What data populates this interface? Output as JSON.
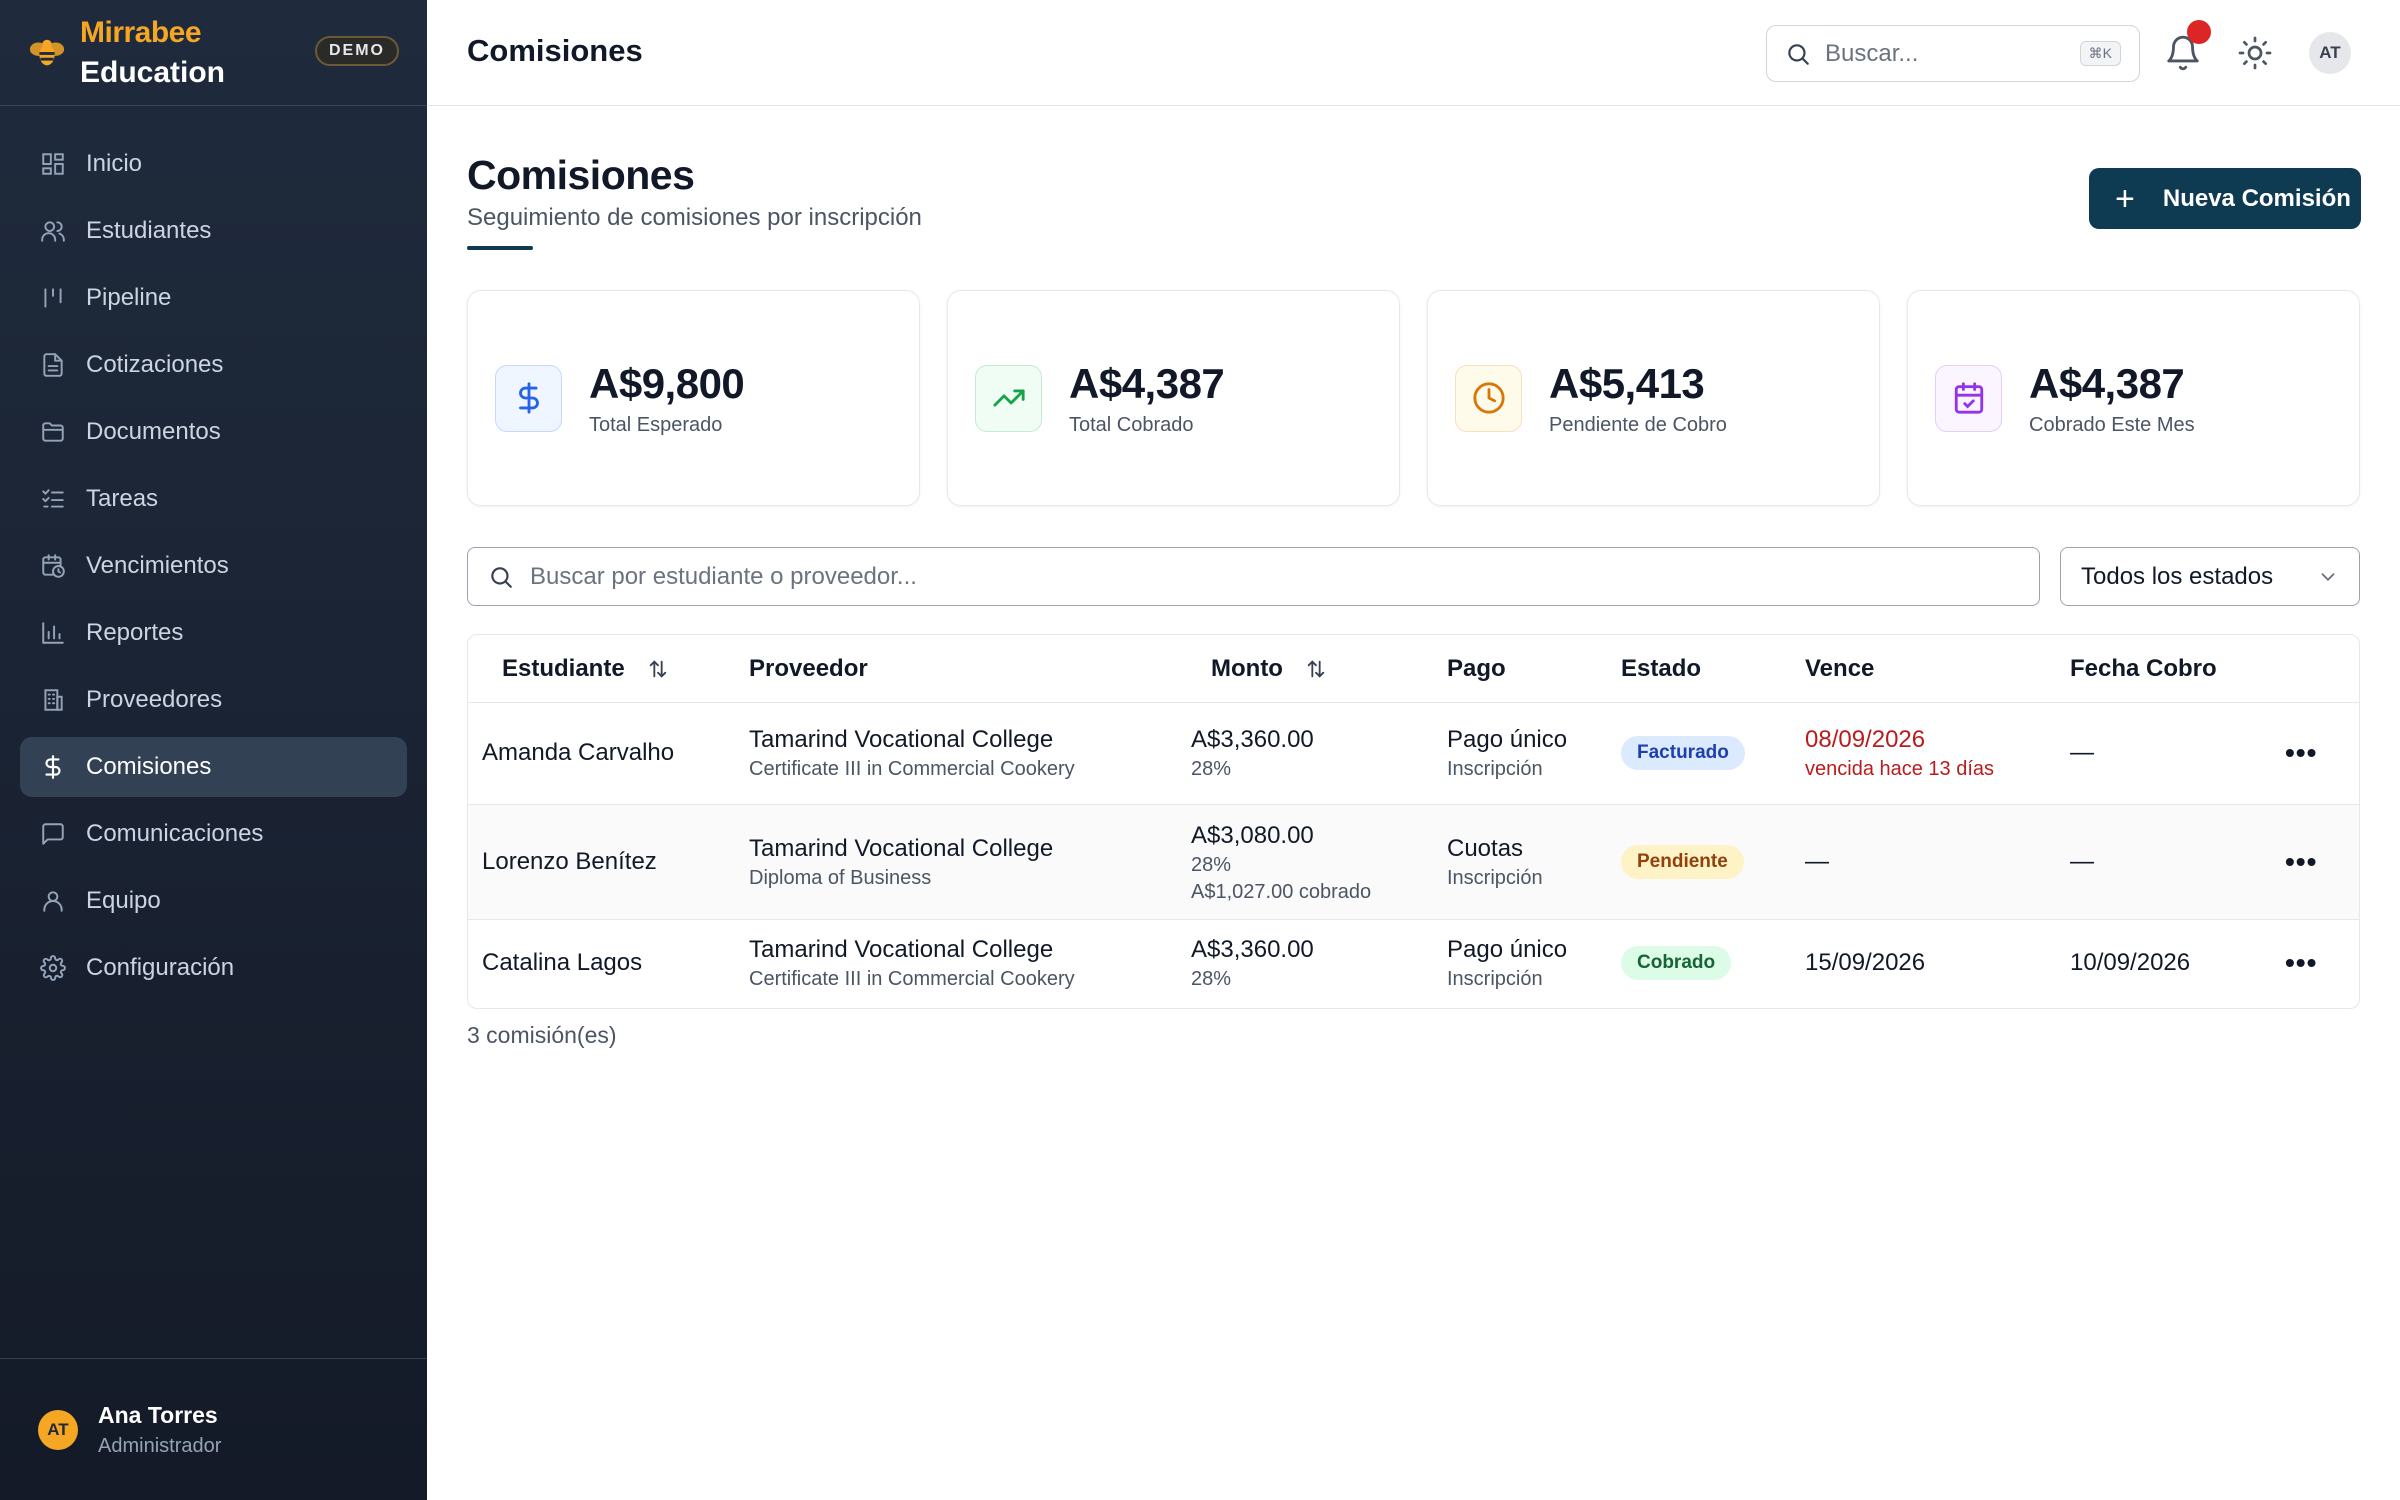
{
  "brand": {
    "name": "Mirrabee",
    "sub": "Education",
    "badge": "DEMO"
  },
  "nav": [
    {
      "label": "Inicio",
      "icon": "grid-icon"
    },
    {
      "label": "Estudiantes",
      "icon": "users-icon"
    },
    {
      "label": "Pipeline",
      "icon": "pipeline-icon"
    },
    {
      "label": "Cotizaciones",
      "icon": "file-text-icon"
    },
    {
      "label": "Documentos",
      "icon": "folder-icon"
    },
    {
      "label": "Tareas",
      "icon": "checklist-icon"
    },
    {
      "label": "Vencimientos",
      "icon": "calendar-clock-icon"
    },
    {
      "label": "Reportes",
      "icon": "bar-chart-icon"
    },
    {
      "label": "Proveedores",
      "icon": "building-icon"
    },
    {
      "label": "Comisiones",
      "icon": "dollar-icon",
      "active": true
    },
    {
      "label": "Comunicaciones",
      "icon": "message-icon"
    },
    {
      "label": "Equipo",
      "icon": "user-icon"
    },
    {
      "label": "Configuración",
      "icon": "gear-icon"
    }
  ],
  "user": {
    "initials": "AT",
    "name": "Ana Torres",
    "role": "Administrador"
  },
  "topbar": {
    "title": "Comisiones",
    "search_placeholder": "Buscar...",
    "shortcut": "⌘K",
    "avatar": "AT"
  },
  "page": {
    "title": "Comisiones",
    "subtitle": "Seguimiento de comisiones por inscripción",
    "new_button": "Nueva Comisión"
  },
  "stats": [
    {
      "value": "A$9,800",
      "label": "Total Esperado",
      "icon": "dollar-icon",
      "color": "#2563eb",
      "bg": "#eff6ff"
    },
    {
      "value": "A$4,387",
      "label": "Total Cobrado",
      "icon": "trending-up-icon",
      "color": "#16a34a",
      "bg": "#f0fdf4"
    },
    {
      "value": "A$5,413",
      "label": "Pendiente de Cobro",
      "icon": "clock-icon",
      "color": "#d97706",
      "bg": "#fffbeb"
    },
    {
      "value": "A$4,387",
      "label": "Cobrado Este Mes",
      "icon": "calendar-check-icon",
      "color": "#9333ea",
      "bg": "#faf5ff"
    }
  ],
  "filters": {
    "search_placeholder": "Buscar por estudiante o proveedor...",
    "status_value": "Todos los estados"
  },
  "table": {
    "headers": {
      "student": "Estudiante",
      "provider": "Proveedor",
      "amount": "Monto",
      "payment": "Pago",
      "status": "Estado",
      "due": "Vence",
      "collected": "Fecha Cobro"
    },
    "rows": [
      {
        "student": "Amanda Carvalho",
        "provider": "Tamarind Vocational College",
        "course": "Certificate III in Commercial Cookery",
        "amount": "A$3,360.00",
        "rate": "28%",
        "collected_amount": "",
        "payment": "Pago único",
        "payment_type": "Inscripción",
        "status": "Facturado",
        "due": "08/09/2026",
        "due_note": "vencida hace 13 días",
        "collected_date": "—"
      },
      {
        "student": "Lorenzo Benítez",
        "provider": "Tamarind Vocational College",
        "course": "Diploma of Business",
        "amount": "A$3,080.00",
        "rate": "28%",
        "collected_amount": "A$1,027.00 cobrado",
        "payment": "Cuotas",
        "payment_type": "Inscripción",
        "status": "Pendiente",
        "due": "—",
        "due_note": "",
        "collected_date": "—"
      },
      {
        "student": "Catalina Lagos",
        "provider": "Tamarind Vocational College",
        "course": "Certificate III in Commercial Cookery",
        "amount": "A$3,360.00",
        "rate": "28%",
        "collected_amount": "",
        "payment": "Pago único",
        "payment_type": "Inscripción",
        "status": "Cobrado",
        "due": "15/09/2026",
        "due_note": "",
        "collected_date": "10/09/2026"
      }
    ],
    "more_label": "•••"
  },
  "count_text": "3 comisión(es)",
  "colors": {
    "sidebar": "#1f2b3d",
    "primary": "#0f3b52",
    "accent": "#f5a623",
    "danger": "#b91c1c"
  }
}
